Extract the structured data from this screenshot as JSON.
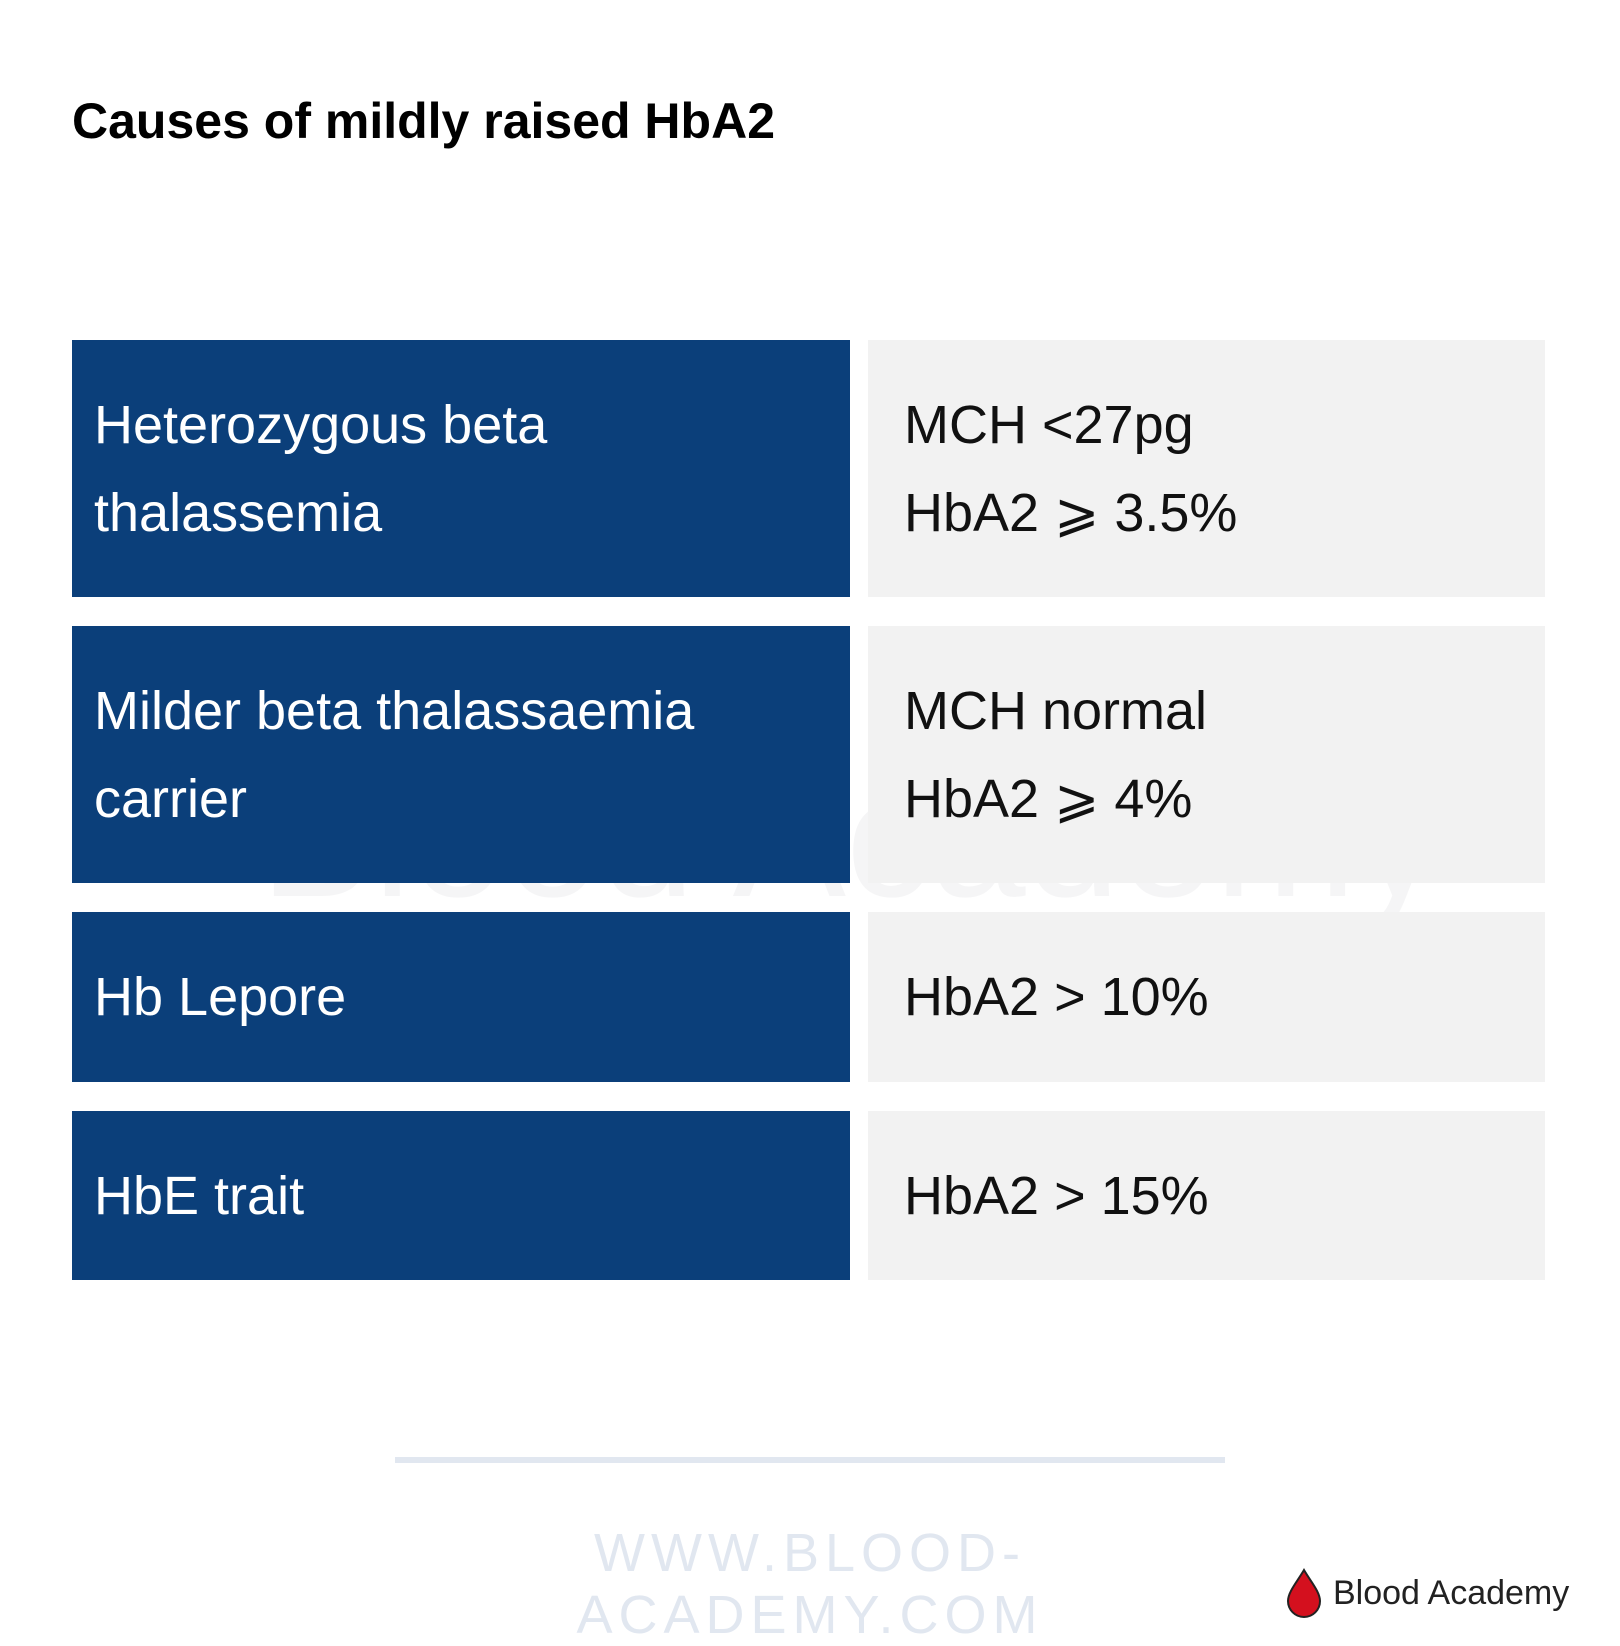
{
  "header": {
    "title": "Causes of mildly raised HbA2"
  },
  "table": {
    "rows": [
      {
        "cause": [
          "Heterozygous beta",
          "thalassemia"
        ],
        "criteria": [
          "MCH <27pg",
          "HbA2 ⩾ 3.5%"
        ]
      },
      {
        "cause": [
          "Milder beta thalassaemia",
          "carrier"
        ],
        "criteria": [
          "MCH normal",
          "HbA2 ⩾ 4%"
        ]
      },
      {
        "cause": [
          "Hb Lepore"
        ],
        "criteria": [
          "HbA2 > 10%"
        ]
      },
      {
        "cause": [
          "HbE trait"
        ],
        "criteria": [
          "HbA2 > 15%"
        ]
      }
    ]
  },
  "watermark": "Blood Academy",
  "footer": {
    "url": "WWW.BLOOD-ACADEMY.COM",
    "logo": "Blood Academy"
  }
}
